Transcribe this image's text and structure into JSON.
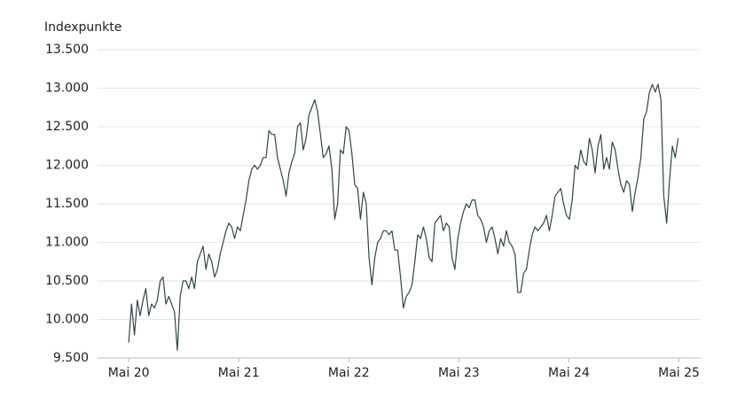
{
  "chart_data": {
    "type": "line",
    "y_axis_label": "Indexpunkte",
    "x": [
      2020.333,
      2020.359,
      2020.385,
      2020.411,
      2020.437,
      2020.463,
      2020.489,
      2020.515,
      2020.541,
      2020.567,
      2020.593,
      2020.619,
      2020.645,
      2020.671,
      2020.697,
      2020.723,
      2020.749,
      2020.775,
      2020.801,
      2020.827,
      2020.853,
      2020.879,
      2020.905,
      2020.931,
      2020.957,
      2020.983,
      2021.009,
      2021.035,
      2021.061,
      2021.087,
      2021.113,
      2021.139,
      2021.165,
      2021.191,
      2021.217,
      2021.243,
      2021.269,
      2021.295,
      2021.321,
      2021.347,
      2021.373,
      2021.399,
      2021.425,
      2021.451,
      2021.477,
      2021.503,
      2021.529,
      2021.555,
      2021.581,
      2021.607,
      2021.633,
      2021.659,
      2021.685,
      2021.711,
      2021.737,
      2021.763,
      2021.789,
      2021.815,
      2021.841,
      2021.867,
      2021.893,
      2021.919,
      2021.945,
      2021.971,
      2021.997,
      2022.023,
      2022.049,
      2022.075,
      2022.101,
      2022.127,
      2022.153,
      2022.179,
      2022.205,
      2022.231,
      2022.257,
      2022.283,
      2022.309,
      2022.335,
      2022.361,
      2022.387,
      2022.413,
      2022.439,
      2022.465,
      2022.491,
      2022.517,
      2022.543,
      2022.569,
      2022.595,
      2022.621,
      2022.647,
      2022.673,
      2022.699,
      2022.725,
      2022.751,
      2022.777,
      2022.803,
      2022.829,
      2022.855,
      2022.881,
      2022.907,
      2022.933,
      2022.959,
      2022.985,
      2023.011,
      2023.037,
      2023.063,
      2023.089,
      2023.115,
      2023.141,
      2023.167,
      2023.193,
      2023.219,
      2023.245,
      2023.271,
      2023.297,
      2023.323,
      2023.349,
      2023.375,
      2023.401,
      2023.427,
      2023.453,
      2023.479,
      2023.505,
      2023.531,
      2023.557,
      2023.583,
      2023.609,
      2023.635,
      2023.661,
      2023.687,
      2023.713,
      2023.739,
      2023.765,
      2023.791,
      2023.817,
      2023.843,
      2023.869,
      2023.895,
      2023.921,
      2023.947,
      2023.973,
      2023.999,
      2024.025,
      2024.051,
      2024.077,
      2024.103,
      2024.129,
      2024.155,
      2024.181,
      2024.207,
      2024.233,
      2024.259,
      2024.285,
      2024.311,
      2024.337,
      2024.363,
      2024.389,
      2024.415,
      2024.441,
      2024.467,
      2024.493,
      2024.519,
      2024.545,
      2024.571,
      2024.597,
      2024.623,
      2024.649,
      2024.675,
      2024.701,
      2024.727,
      2024.753,
      2024.779,
      2024.805,
      2024.831,
      2024.857,
      2024.883,
      2024.909,
      2024.935,
      2024.961,
      2024.987,
      2025.013,
      2025.039,
      2025.065,
      2025.091,
      2025.117,
      2025.143,
      2025.169,
      2025.195,
      2025.221,
      2025.247,
      2025.273,
      2025.299,
      2025.325
    ],
    "series": [
      {
        "color": "#2f4646",
        "values": [
          9700,
          10200,
          9800,
          10250,
          10050,
          10250,
          10400,
          10050,
          10200,
          10150,
          10250,
          10500,
          10550,
          10200,
          10300,
          10200,
          10100,
          9600,
          10300,
          10500,
          10500,
          10400,
          10550,
          10400,
          10750,
          10850,
          10950,
          10650,
          10850,
          10750,
          10550,
          10650,
          10850,
          11000,
          11150,
          11250,
          11200,
          11050,
          11200,
          11150,
          11350,
          11550,
          11800,
          11950,
          12000,
          11950,
          12000,
          12100,
          12100,
          12450,
          12400,
          12400,
          12100,
          11950,
          11800,
          11600,
          11900,
          12050,
          12150,
          12500,
          12550,
          12200,
          12350,
          12650,
          12750,
          12850,
          12700,
          12400,
          12100,
          12150,
          12250,
          11950,
          11300,
          11500,
          12200,
          12150,
          12500,
          12450,
          12150,
          11750,
          11700,
          11300,
          11650,
          11500,
          10800,
          10450,
          10800,
          11000,
          11050,
          11150,
          11150,
          11100,
          11150,
          10900,
          10900,
          10550,
          10150,
          10300,
          10350,
          10450,
          10750,
          11100,
          11050,
          11200,
          11050,
          10800,
          10750,
          11250,
          11300,
          11350,
          11150,
          11250,
          11200,
          10800,
          10650,
          11050,
          11250,
          11400,
          11500,
          11450,
          11550,
          11550,
          11350,
          11300,
          11200,
          11000,
          11150,
          11200,
          11050,
          10850,
          11050,
          10950,
          11150,
          11000,
          10950,
          10850,
          10350,
          10350,
          10600,
          10650,
          10900,
          11100,
          11200,
          11150,
          11200,
          11250,
          11350,
          11150,
          11350,
          11600,
          11650,
          11700,
          11500,
          11350,
          11300,
          11550,
          12000,
          11950,
          12200,
          12050,
          12000,
          12350,
          12200,
          11900,
          12250,
          12400,
          11950,
          12100,
          11950,
          12300,
          12200,
          11950,
          11750,
          11650,
          11800,
          11750,
          11400,
          11650,
          11850,
          12100,
          12600,
          12700,
          12950,
          13050,
          12950,
          13050,
          12850,
          11600,
          11250,
          11800,
          12250,
          12100,
          12350
        ]
      }
    ],
    "xlim": [
      2020.05,
      2025.53
    ],
    "xticks": [
      {
        "value": 2020.333,
        "label": "Mai 20"
      },
      {
        "value": 2021.333,
        "label": "Mai 21"
      },
      {
        "value": 2022.333,
        "label": "Mai 22"
      },
      {
        "value": 2023.333,
        "label": "Mai 23"
      },
      {
        "value": 2024.333,
        "label": "Mai 24"
      },
      {
        "value": 2025.333,
        "label": "Mai 25"
      }
    ],
    "ylim": [
      9500,
      13500
    ],
    "yticks": [
      {
        "value": 9500,
        "label": "9.500"
      },
      {
        "value": 10000,
        "label": "10.000"
      },
      {
        "value": 10500,
        "label": "10.500"
      },
      {
        "value": 11000,
        "label": "11.000"
      },
      {
        "value": 11500,
        "label": "11.500"
      },
      {
        "value": 12000,
        "label": "12.000"
      },
      {
        "value": 12500,
        "label": "12.500"
      },
      {
        "value": 13000,
        "label": "13.000"
      },
      {
        "value": 13500,
        "label": "13.500"
      }
    ],
    "grid": true
  }
}
